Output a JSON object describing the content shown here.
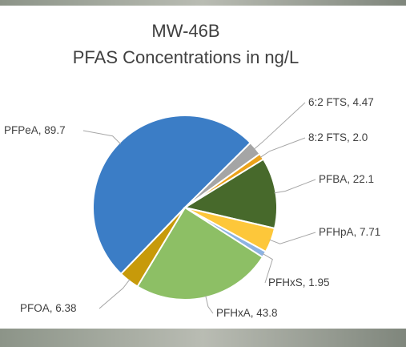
{
  "chart_data": {
    "type": "pie",
    "title": "MW-46B",
    "subtitle": "PFAS Concentrations in ng/L",
    "categories": [
      "PFPeA",
      "6:2 FTS",
      "8:2 FTS",
      "PFBA",
      "PFHpA",
      "PFHxS",
      "PFHxA",
      "PFOA"
    ],
    "values": [
      89.7,
      4.47,
      2.0,
      22.1,
      7.71,
      1.95,
      43.8,
      6.38
    ],
    "value_labels": [
      "89.7",
      "4.47",
      "2.0",
      "22.1",
      "7.71",
      "1.95",
      "43.8",
      "6.38"
    ],
    "colors": [
      "#3b7dc6",
      "#a5a5a5",
      "#eba21b",
      "#47692b",
      "#fdc73a",
      "#8db3e2",
      "#8dbf65",
      "#c79a0a"
    ]
  }
}
